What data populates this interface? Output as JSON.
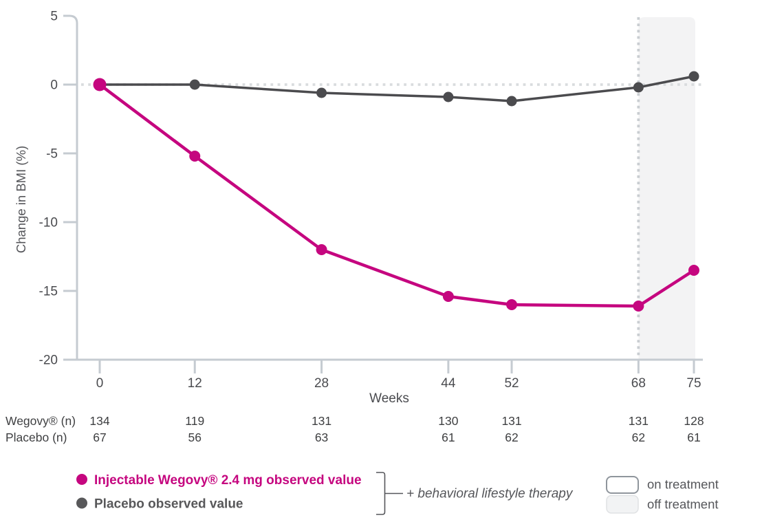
{
  "chart_data": {
    "type": "line",
    "title": "",
    "xlabel": "Weeks",
    "ylabel": "Change in BMI (%)",
    "ylim": [
      -20,
      5
    ],
    "yticks": [
      5,
      0,
      -5,
      -10,
      -15,
      -20
    ],
    "x": [
      0,
      12,
      28,
      44,
      52,
      68,
      75
    ],
    "series": [
      {
        "name": "Injectable Wegovy® 2.4 mg observed value",
        "color": "#C5067F",
        "values": [
          0,
          -5.2,
          -12.0,
          -15.4,
          -16.0,
          -16.1,
          -13.5
        ]
      },
      {
        "name": "Placebo observed value",
        "color": "#4B4B4E",
        "values": [
          0,
          0,
          -0.6,
          -0.9,
          -1.2,
          -0.2,
          0.6
        ]
      }
    ],
    "baseline_value": 0,
    "grid": "off",
    "legend_position": "bottom",
    "off_treatment_region": {
      "from_week": 68,
      "to_week": 75
    },
    "annotations": {
      "therapy_note": "+ behavioral lifestyle therapy",
      "on_treatment": "on treatment",
      "off_treatment": "off treatment"
    }
  },
  "table": {
    "rows": [
      {
        "label": "Wegovy® (n)",
        "values": [
          "134",
          "119",
          "131",
          "130",
          "131",
          "131",
          "128"
        ]
      },
      {
        "label": "Placebo (n)",
        "values": [
          "67",
          "56",
          "63",
          "61",
          "62",
          "62",
          "61"
        ]
      }
    ]
  },
  "colors": {
    "wegovy": "#C5067F",
    "placebo": "#4B4B4E",
    "axis": "#C5CBD1",
    "dotted_zero_line": "#D9DCDE",
    "dotted_vertical_line": "#C9CDD1",
    "shade_fill": "#F3F3F4",
    "tick_text": "#4A4B4F",
    "table_text": "#3E3F41",
    "legend_gray_text": "#58585A",
    "swatch_on_border": "#8F959C",
    "swatch_off_fill": "#F2F3F4",
    "swatch_off_border": "#E0E2E4"
  }
}
